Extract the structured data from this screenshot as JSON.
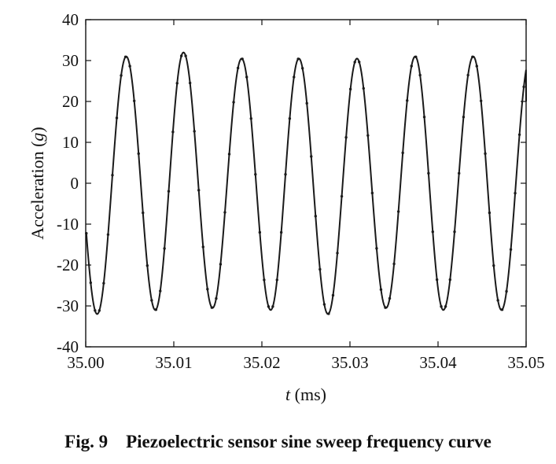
{
  "chart_data": {
    "type": "line",
    "title": "",
    "xlabel_italic": "t",
    "xlabel_rest": " (ms)",
    "ylabel_main": "Acceleration (",
    "ylabel_italic": "g",
    "ylabel_close": ")",
    "xlim": [
      35.0,
      35.05
    ],
    "ylim": [
      -40,
      40
    ],
    "xticks": [
      "35.00",
      "35.01",
      "35.02",
      "35.03",
      "35.04",
      "35.05"
    ],
    "xtick_values": [
      35.0,
      35.01,
      35.02,
      35.03,
      35.04,
      35.05
    ],
    "yticks": [
      "40",
      "30",
      "20",
      "10",
      "0",
      "-10",
      "-20",
      "-30",
      "-40"
    ],
    "ytick_values": [
      40,
      30,
      20,
      10,
      0,
      -10,
      -20,
      -30,
      -40
    ],
    "grid": false,
    "series": [
      {
        "amplitude": 31,
        "period_ms": 0.00655,
        "peaks_ms": [
          35.0046,
          35.0111,
          35.0177,
          35.0242,
          35.0308,
          35.0374,
          35.044
        ],
        "peak_values": [
          31,
          32,
          30.5,
          30.5,
          30.5,
          31,
          31
        ],
        "troughs_ms": [
          35.0013,
          35.0079,
          35.0144,
          35.021,
          35.0275,
          35.0341,
          35.0406,
          35.0472
        ],
        "trough_values": [
          -32,
          -31,
          -30.5,
          -31,
          -32,
          -30.5,
          -31,
          -31
        ],
        "end_value": 20,
        "color": "#1a1a1a"
      }
    ]
  },
  "caption": {
    "label": "Fig. 9",
    "text": "Piezoelectric sensor sine sweep frequency curve"
  }
}
